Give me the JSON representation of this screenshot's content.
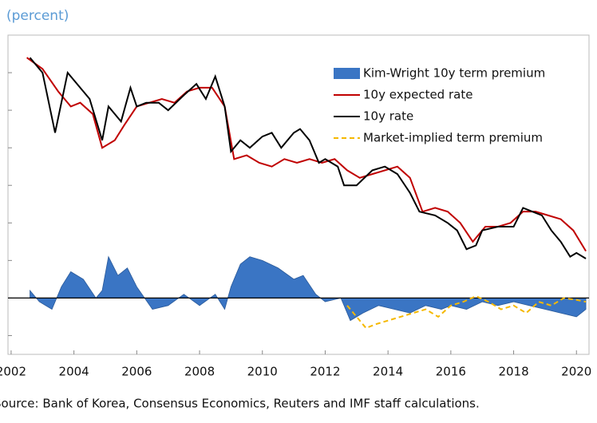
{
  "chart_data": {
    "type": "line",
    "subtitle": "(percent)",
    "source": "Source: Bank of Korea, Consensus Economics, Reuters and IMF staff calculations.",
    "xlim": [
      2001.9,
      2020.4
    ],
    "xticks": [
      2002,
      2004,
      2006,
      2008,
      2010,
      2012,
      2014,
      2016,
      2018,
      2020
    ],
    "ylim": [
      -1.5,
      7
    ],
    "yticks": [
      -1,
      0,
      1,
      2,
      3,
      4,
      5,
      6
    ],
    "legend": "upper right",
    "series": [
      {
        "name": "Kim-Wright 10y term premium",
        "color": "#3a75c4",
        "style": "area",
        "x": [
          2002.6,
          2002.9,
          2003.3,
          2003.6,
          2003.9,
          2004.3,
          2004.7,
          2004.9,
          2005.1,
          2005.4,
          2005.7,
          2006.0,
          2006.5,
          2007.0,
          2007.5,
          2008.0,
          2008.5,
          2008.8,
          2009.0,
          2009.3,
          2009.6,
          2010.0,
          2010.5,
          2011.0,
          2011.3,
          2011.7,
          2012.0,
          2012.5,
          2012.8,
          2013.2,
          2013.7,
          2014.2,
          2014.7,
          2015.2,
          2015.7,
          2016.0,
          2016.5,
          2017.0,
          2017.5,
          2018.0,
          2018.5,
          2019.0,
          2019.5,
          2020.0,
          2020.3
        ],
        "values": [
          0.2,
          -0.1,
          -0.3,
          0.3,
          0.7,
          0.5,
          0.0,
          0.2,
          1.1,
          0.6,
          0.8,
          0.3,
          -0.3,
          -0.2,
          0.1,
          -0.2,
          0.1,
          -0.3,
          0.3,
          0.9,
          1.1,
          1.0,
          0.8,
          0.5,
          0.6,
          0.1,
          -0.1,
          0.0,
          -0.6,
          -0.4,
          -0.2,
          -0.3,
          -0.4,
          -0.2,
          -0.3,
          -0.2,
          -0.3,
          -0.1,
          -0.2,
          -0.1,
          -0.2,
          -0.3,
          -0.4,
          -0.5,
          -0.3
        ]
      },
      {
        "name": "10y expected rate",
        "color": "#c00000",
        "style": "line",
        "x": [
          2002.5,
          2003.0,
          2003.5,
          2003.9,
          2004.2,
          2004.6,
          2004.9,
          2005.3,
          2005.6,
          2006.0,
          2006.4,
          2006.8,
          2007.2,
          2007.6,
          2008.0,
          2008.4,
          2008.8,
          2009.1,
          2009.5,
          2009.9,
          2010.3,
          2010.7,
          2011.1,
          2011.5,
          2011.9,
          2012.3,
          2012.7,
          2013.1,
          2013.5,
          2013.9,
          2014.3,
          2014.7,
          2015.1,
          2015.5,
          2015.9,
          2016.3,
          2016.7,
          2017.1,
          2017.5,
          2017.9,
          2018.3,
          2018.7,
          2019.1,
          2019.5,
          2019.9,
          2020.3
        ],
        "values": [
          6.4,
          6.1,
          5.5,
          5.1,
          5.2,
          4.9,
          4.0,
          4.2,
          4.6,
          5.1,
          5.2,
          5.3,
          5.2,
          5.5,
          5.6,
          5.6,
          5.1,
          3.7,
          3.8,
          3.6,
          3.5,
          3.7,
          3.6,
          3.7,
          3.6,
          3.7,
          3.4,
          3.2,
          3.3,
          3.4,
          3.5,
          3.2,
          2.3,
          2.4,
          2.3,
          2.0,
          1.5,
          1.9,
          1.9,
          2.0,
          2.3,
          2.3,
          2.2,
          2.1,
          1.8,
          1.25
        ]
      },
      {
        "name": "10y rate",
        "color": "#000000",
        "style": "line",
        "x": [
          2002.6,
          2003.0,
          2003.4,
          2003.8,
          2004.0,
          2004.5,
          2004.9,
          2005.1,
          2005.5,
          2005.8,
          2006.0,
          2006.3,
          2006.7,
          2007.0,
          2007.5,
          2007.9,
          2008.2,
          2008.5,
          2008.8,
          2009.0,
          2009.3,
          2009.6,
          2010.0,
          2010.3,
          2010.6,
          2011.0,
          2011.2,
          2011.5,
          2011.8,
          2012.0,
          2012.4,
          2012.6,
          2013.0,
          2013.5,
          2013.9,
          2014.3,
          2014.7,
          2015.0,
          2015.5,
          2015.9,
          2016.2,
          2016.5,
          2016.8,
          2017.0,
          2017.5,
          2018.0,
          2018.3,
          2018.6,
          2018.9,
          2019.2,
          2019.5,
          2019.8,
          2020.0,
          2020.3
        ],
        "values": [
          6.4,
          6.0,
          4.4,
          6.0,
          5.8,
          5.3,
          4.2,
          5.1,
          4.7,
          5.6,
          5.1,
          5.2,
          5.2,
          5.0,
          5.4,
          5.7,
          5.3,
          5.9,
          5.1,
          3.9,
          4.2,
          4.0,
          4.3,
          4.4,
          4.0,
          4.4,
          4.5,
          4.2,
          3.6,
          3.7,
          3.5,
          3.0,
          3.0,
          3.4,
          3.5,
          3.3,
          2.8,
          2.3,
          2.2,
          2.0,
          1.8,
          1.3,
          1.4,
          1.8,
          1.9,
          1.9,
          2.4,
          2.3,
          2.2,
          1.8,
          1.5,
          1.1,
          1.2,
          1.05
        ]
      },
      {
        "name": "Market-implied term premium",
        "color": "#f5b800",
        "style": "dashed",
        "x": [
          2012.7,
          2013.0,
          2013.3,
          2013.6,
          2014.0,
          2014.4,
          2014.8,
          2015.2,
          2015.6,
          2016.0,
          2016.4,
          2016.8,
          2017.2,
          2017.6,
          2018.0,
          2018.4,
          2018.8,
          2019.2,
          2019.6,
          2020.0,
          2020.3
        ],
        "values": [
          -0.2,
          -0.5,
          -0.8,
          -0.7,
          -0.6,
          -0.5,
          -0.4,
          -0.3,
          -0.5,
          -0.2,
          -0.1,
          0.05,
          -0.1,
          -0.3,
          -0.2,
          -0.4,
          -0.1,
          -0.2,
          0.0,
          -0.05,
          -0.1
        ]
      }
    ]
  }
}
